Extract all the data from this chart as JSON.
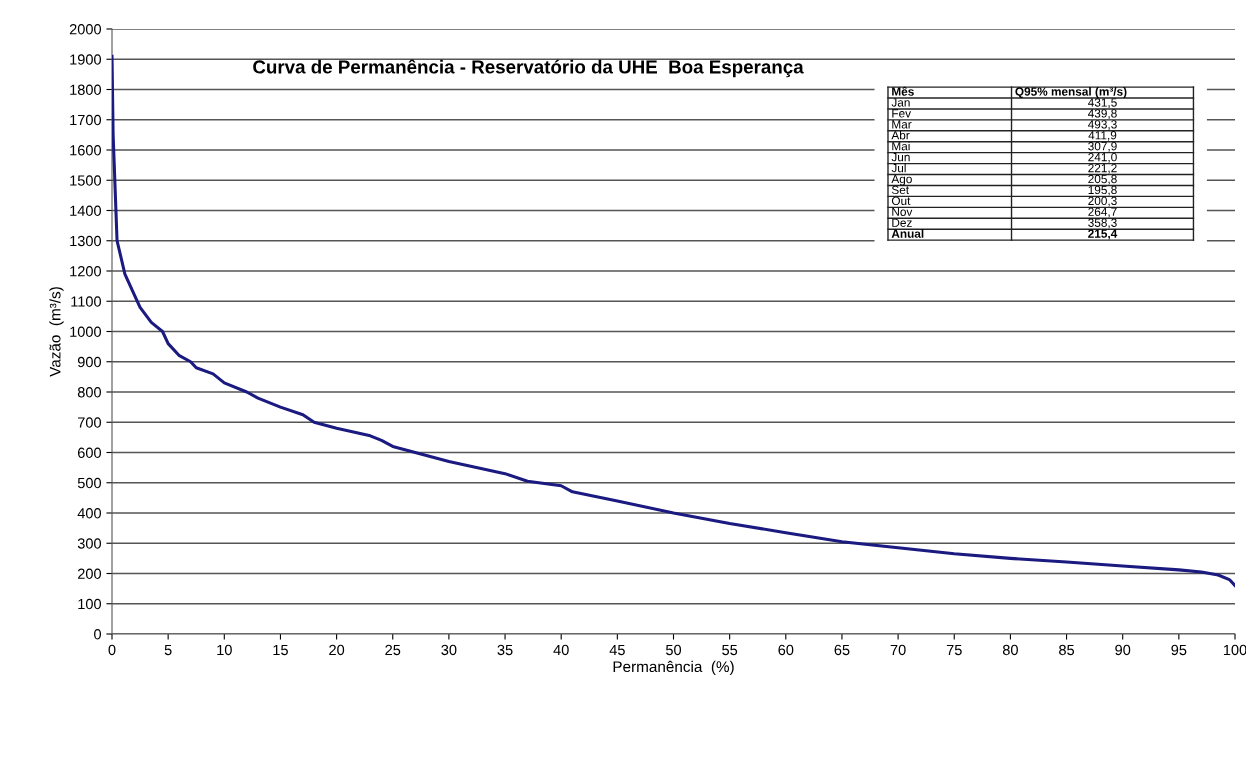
{
  "chart_data": {
    "type": "line",
    "title": "Curva de Permanência - Reservatório da UHE  Boa Esperança",
    "xlabel": "Permanência  (%)",
    "ylabel": "Vazão  (m³/s)",
    "x": [
      0,
      0.1,
      0.45,
      1.15,
      2,
      2.5,
      3.5,
      4.5,
      5,
      6,
      7,
      7.5,
      9,
      10,
      12,
      13,
      15,
      17,
      18,
      20,
      23,
      24,
      25,
      27,
      30,
      35,
      37,
      40,
      41,
      45,
      50,
      55,
      60,
      65,
      70,
      75,
      80,
      85,
      90,
      95,
      97,
      98.5,
      99.5,
      100
    ],
    "series": [
      {
        "color": "#1a1a80",
        "values": [
          1910,
          1650,
          1300,
          1190,
          1120,
          1080,
          1030,
          1000,
          960,
          920,
          900,
          880,
          860,
          830,
          800,
          780,
          750,
          725,
          700,
          680,
          655,
          640,
          620,
          600,
          570,
          530,
          505,
          490,
          470,
          440,
          400,
          365,
          335,
          305,
          285,
          265,
          250,
          238,
          225,
          212,
          205,
          195,
          180,
          160
        ]
      }
    ],
    "xlim": [
      0,
      100
    ],
    "xticks": [
      0,
      5,
      10,
      15,
      20,
      25,
      30,
      35,
      40,
      45,
      50,
      55,
      60,
      65,
      70,
      75,
      80,
      85,
      90,
      95,
      100
    ],
    "ylim": [
      0,
      2000
    ],
    "yticks": [
      0,
      100,
      200,
      300,
      400,
      500,
      600,
      700,
      800,
      900,
      1000,
      1100,
      1200,
      1300,
      1400,
      1500,
      1600,
      1700,
      1800,
      1900,
      2000
    ],
    "grid": "y",
    "legend": false,
    "marker": "none",
    "line_style": "solid",
    "annotations": [
      "Mês",
      "Q95% mensal (m³/s)",
      "Jan",
      "431,5",
      "Fev",
      "439,8",
      "Mar",
      "493,3",
      "Abr",
      "411,9",
      "Mai",
      "307,9",
      "Jun",
      "241,0",
      "Jul",
      "221,2",
      "Ago",
      "205,8",
      "Set",
      "195,8",
      "Out",
      "200,3",
      "Nov",
      "264,7",
      "Dez",
      "358,3",
      "Anual",
      "215,4"
    ]
  }
}
